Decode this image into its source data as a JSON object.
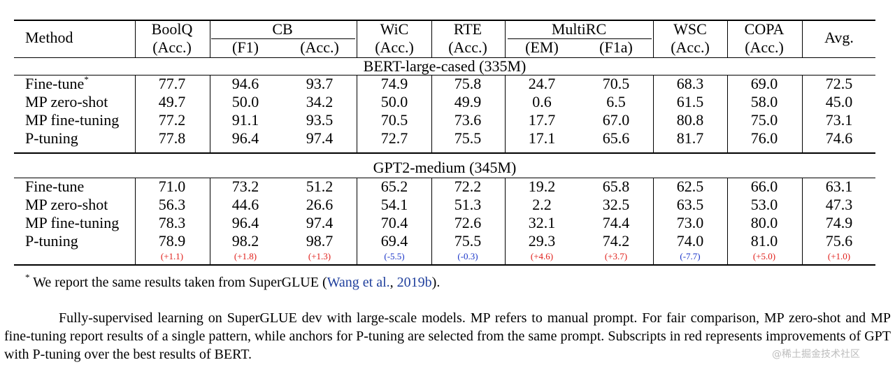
{
  "table": {
    "header": {
      "method": "Method",
      "groups": [
        "BoolQ",
        "CB",
        "WiC",
        "RTE",
        "MultiRC",
        "WSC",
        "COPA",
        "Avg."
      ],
      "subs": [
        "(Acc.)",
        "(F1)",
        "(Acc.)",
        "(Acc.)",
        "(Acc.)",
        "(EM)",
        "(F1a)",
        "(Acc.)",
        "(Acc.)"
      ]
    },
    "sections": [
      {
        "title": "BERT-large-cased (335M)",
        "rows": [
          {
            "method": "Fine-tune",
            "mark": "*",
            "values": [
              "77.7",
              "94.6",
              "93.7",
              "74.9",
              "75.8",
              "24.7",
              "70.5",
              "68.3",
              "69.0",
              "72.5"
            ]
          },
          {
            "method": "MP zero-shot",
            "mark": "",
            "values": [
              "49.7",
              "50.0",
              "34.2",
              "50.0",
              "49.9",
              "0.6",
              "6.5",
              "61.5",
              "58.0",
              "45.0"
            ]
          },
          {
            "method": "MP fine-tuning",
            "mark": "",
            "values": [
              "77.2",
              "91.1",
              "93.5",
              "70.5",
              "73.6",
              "17.7",
              "67.0",
              "80.8",
              "75.0",
              "73.1"
            ]
          },
          {
            "method": "P-tuning",
            "mark": "",
            "values": [
              "77.8",
              "96.4",
              "97.4",
              "72.7",
              "75.5",
              "17.1",
              "65.6",
              "81.7",
              "76.0",
              "74.6"
            ]
          }
        ]
      },
      {
        "title": "GPT2-medium (345M)",
        "rows": [
          {
            "method": "Fine-tune",
            "mark": "",
            "values": [
              "71.0",
              "73.2",
              "51.2",
              "65.2",
              "72.2",
              "19.2",
              "65.8",
              "62.5",
              "66.0",
              "63.1"
            ]
          },
          {
            "method": "MP zero-shot",
            "mark": "",
            "values": [
              "56.3",
              "44.6",
              "26.6",
              "54.1",
              "51.3",
              "2.2",
              "32.5",
              "63.5",
              "53.0",
              "47.3"
            ]
          },
          {
            "method": "MP fine-tuning",
            "mark": "",
            "values": [
              "78.3",
              "96.4",
              "97.4",
              "70.4",
              "72.6",
              "32.1",
              "74.4",
              "73.0",
              "80.0",
              "74.9"
            ]
          },
          {
            "method": "P-tuning",
            "mark": "",
            "values": [
              "78.9",
              "98.2",
              "98.7",
              "69.4",
              "75.5",
              "29.3",
              "74.2",
              "74.0",
              "81.0",
              "75.6"
            ]
          }
        ],
        "deltas": [
          {
            "text": "(+1.1)",
            "color": "#e0201b"
          },
          {
            "text": "(+1.8)",
            "color": "#e0201b"
          },
          {
            "text": "(+1.3)",
            "color": "#e0201b"
          },
          {
            "text": "(-5.5)",
            "color": "#1a35c8"
          },
          {
            "text": "(-0.3)",
            "color": "#1a35c8"
          },
          {
            "text": "(+4.6)",
            "color": "#e0201b"
          },
          {
            "text": "(+3.7)",
            "color": "#e0201b"
          },
          {
            "text": "(-7.7)",
            "color": "#1a35c8"
          },
          {
            "text": "(+5.0)",
            "color": "#e0201b"
          },
          {
            "text": "(+1.0)",
            "color": "#e0201b"
          }
        ]
      }
    ]
  },
  "footnote": {
    "mark": "*",
    "text": "We report the same results taken from SuperGLUE (",
    "cite_link": "Wang et al.",
    "cite_sep": ", ",
    "cite_year": "2019b",
    "end": ")."
  },
  "caption": "Fully-supervised learning on SuperGLUE dev with large-scale models. MP refers to manual prompt. For fair comparison, MP zero-shot and MP fine-tuning report results of a single pattern, while anchors for P-tuning are selected from the same prompt. Subscripts in red represents improvements of GPT with P-tuning over the best results of BERT.",
  "watermark": "@稀土掘金技术社区"
}
